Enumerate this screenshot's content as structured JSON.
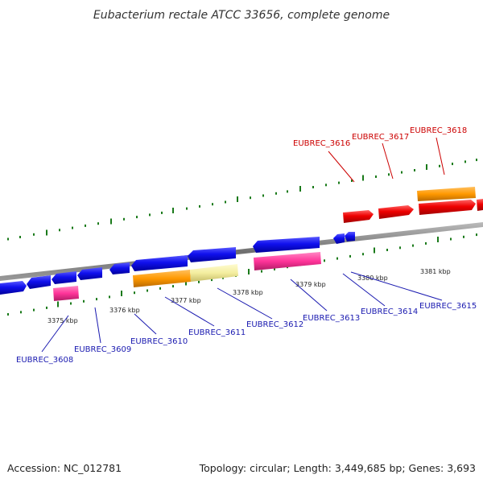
{
  "title": "Eubacterium rectale ATCC 33656, complete genome",
  "footer": {
    "accession": "Accession: NC_012781",
    "summary": "Topology: circular; Length: 3,449,685 bp; Genes: 3,693"
  },
  "colors": {
    "background": "#ffffff",
    "backbone": "#888888",
    "tick": "#1a7a1a",
    "forward_gene": "#ff0000",
    "reverse_gene": "#1010ee",
    "orange_feature": "#ff9900",
    "pink_feature": "#ff3399",
    "pale_feature": "#f4eea0",
    "label_neg": "#1a1ab0",
    "label_pos": "#cc0000"
  },
  "scale_labels": [
    "3375 kbp",
    "3376 kbp",
    "3377 kbp",
    "3378 kbp",
    "3379 kbp",
    "3380 kbp",
    "3381 kbp"
  ],
  "genes_reverse": [
    "EUBREC_3608",
    "EUBREC_3609",
    "EUBREC_3610",
    "EUBREC_3611",
    "EUBREC_3612",
    "EUBREC_3613",
    "EUBREC_3614",
    "EUBREC_3615"
  ],
  "genes_forward": [
    "EUBREC_3616",
    "EUBREC_3617",
    "EUBREC_3618"
  ]
}
